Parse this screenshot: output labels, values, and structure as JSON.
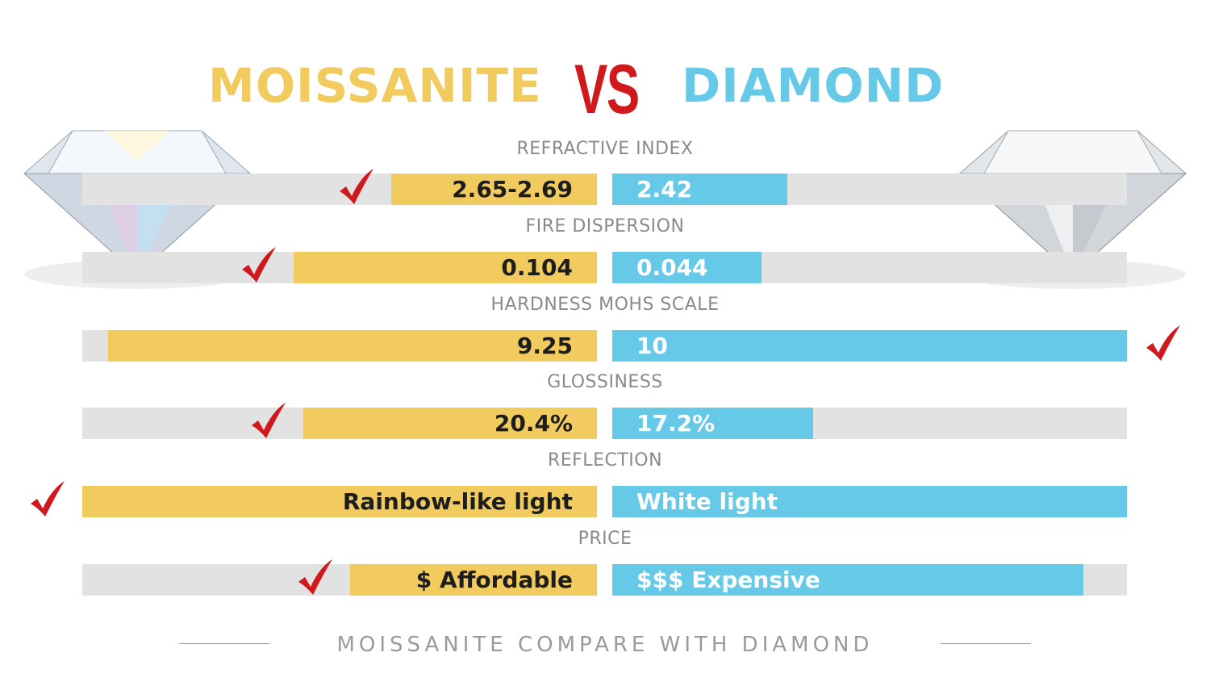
{
  "header": {
    "left": "MOISSANITE",
    "vs": "VS",
    "right": "DIAMOND"
  },
  "colors": {
    "moissanite": "#F1CB5E",
    "diamond": "#66C9E8",
    "track": "#E2E2E2",
    "check": "#D0191C",
    "vs": "#D0191C"
  },
  "chart_data": {
    "type": "bar",
    "orientation": "diverging-horizontal",
    "series": [
      {
        "name": "MOISSANITE"
      },
      {
        "name": "DIAMOND"
      }
    ],
    "rows": [
      {
        "label": "REFRACTIVE INDEX",
        "moissanite": "2.65-2.69",
        "diamond": "2.42",
        "moissanite_fill": 0.4,
        "diamond_fill": 0.34,
        "winner": "moissanite"
      },
      {
        "label": "FIRE DISPERSION",
        "moissanite": "0.104",
        "diamond": "0.044",
        "moissanite_fill": 0.59,
        "diamond_fill": 0.29,
        "winner": "moissanite"
      },
      {
        "label": "HARDNESS MOHS SCALE",
        "moissanite": "9.25",
        "diamond": "10",
        "moissanite_fill": 0.95,
        "diamond_fill": 1.0,
        "winner": "diamond"
      },
      {
        "label": "GLOSSINESS",
        "moissanite": "20.4%",
        "diamond": "17.2%",
        "moissanite_fill": 0.57,
        "diamond_fill": 0.39,
        "winner": "moissanite"
      },
      {
        "label": "REFLECTION",
        "moissanite": "Rainbow-like light",
        "diamond": "White light",
        "moissanite_fill": 1.0,
        "diamond_fill": 1.0,
        "winner": "moissanite"
      },
      {
        "label": "PRICE",
        "moissanite": "$ Affordable",
        "diamond": "$$$ Expensive",
        "moissanite_fill": 0.48,
        "diamond_fill": 0.915,
        "winner": "moissanite"
      }
    ]
  },
  "footer": "MOISSANITE COMPARE WITH DIAMOND",
  "icons": {
    "check": "checkmark-icon",
    "gem": "diamond-gem-icon"
  }
}
